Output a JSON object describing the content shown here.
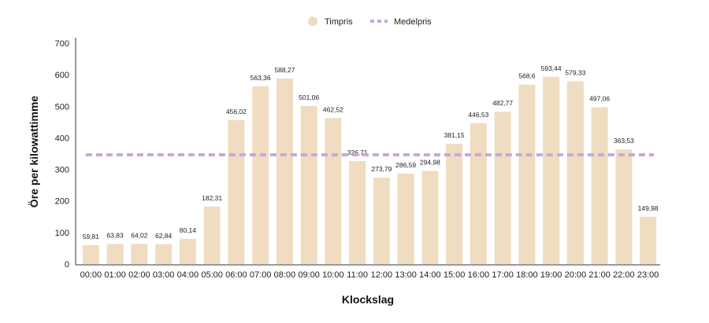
{
  "chart_data": {
    "type": "bar",
    "categories": [
      "00:00",
      "01:00",
      "02:00",
      "03:00",
      "04:00",
      "05:00",
      "06:00",
      "07:00",
      "08:00",
      "09:00",
      "10:00",
      "11:00",
      "12:00",
      "13:00",
      "14:00",
      "15:00",
      "16:00",
      "17:00",
      "18:00",
      "19:00",
      "20:00",
      "21:00",
      "22:00",
      "23:00"
    ],
    "series": [
      {
        "name": "Timpris",
        "values": [
          59.81,
          63.83,
          64.02,
          62.84,
          80.14,
          182.31,
          456.02,
          563.36,
          588.27,
          501.06,
          462.52,
          326.71,
          273.79,
          286.59,
          294.98,
          381.15,
          446.53,
          482.77,
          568.6,
          593.44,
          579.33,
          497.06,
          363.53,
          149.98
        ],
        "labels": [
          "59,81",
          "63,83",
          "64,02",
          "62,84",
          "80,14",
          "182,31",
          "456,02",
          "563,36",
          "588,27",
          "501,06",
          "462,52",
          "326,71",
          "273,79",
          "286,59",
          "294,98",
          "381,15",
          "446,53",
          "482,77",
          "568,6",
          "593,44",
          "579,33",
          "497,06",
          "363,53",
          "149,98"
        ],
        "color": "#f0dcc0"
      }
    ],
    "reference_line": {
      "name": "Medelpris",
      "value": 346.14,
      "color": "#c9a8dc",
      "style": "dashed"
    },
    "xlabel": "Klockslag",
    "ylabel": "Öre per kilowattimme",
    "ylim": [
      0,
      700
    ],
    "yticks": [
      0,
      100,
      200,
      300,
      400,
      500,
      600,
      700
    ],
    "legend": {
      "placement": "top-center",
      "entries": [
        "Timpris",
        "Medelpris"
      ]
    },
    "grid": false
  }
}
